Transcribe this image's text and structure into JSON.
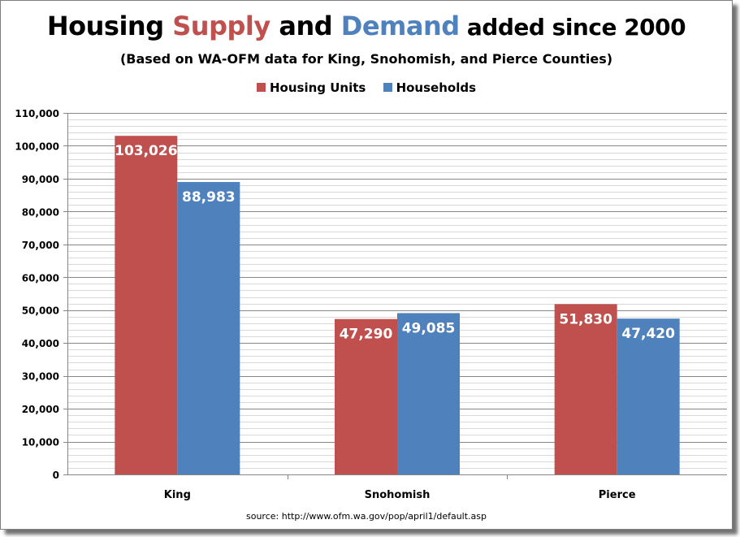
{
  "title": {
    "part1": "Housing ",
    "supply": "Supply",
    "part2": " and ",
    "demand": "Demand",
    "part3": " added since 2000"
  },
  "subtitle": "(Based on WA-OFM data for King, Snohomish, and Pierce Counties)",
  "source": "source: http://www.ofm.wa.gov/pop/april1/default.asp",
  "colors": {
    "housing_units": "#c0504d",
    "households": "#4f81bd",
    "supply_text": "#c0504d",
    "demand_text": "#4f81bd"
  },
  "chart_data": {
    "type": "bar",
    "categories": [
      "King",
      "Snohomish",
      "Pierce"
    ],
    "series": [
      {
        "name": "Housing Units",
        "values": [
          103026,
          47290,
          51830
        ],
        "labels": [
          "103,026",
          "47,290",
          "51,830"
        ],
        "color": "#c0504d"
      },
      {
        "name": "Households",
        "values": [
          88983,
          49085,
          47420
        ],
        "labels": [
          "88,983",
          "49,085",
          "47,420"
        ],
        "color": "#4f81bd"
      }
    ],
    "ylim": [
      0,
      110000
    ],
    "ytick_labels": [
      "0",
      "10,000",
      "20,000",
      "30,000",
      "40,000",
      "50,000",
      "60,000",
      "70,000",
      "80,000",
      "90,000",
      "100,000",
      "110,000"
    ],
    "legend_position": "top-center",
    "grid": true
  }
}
